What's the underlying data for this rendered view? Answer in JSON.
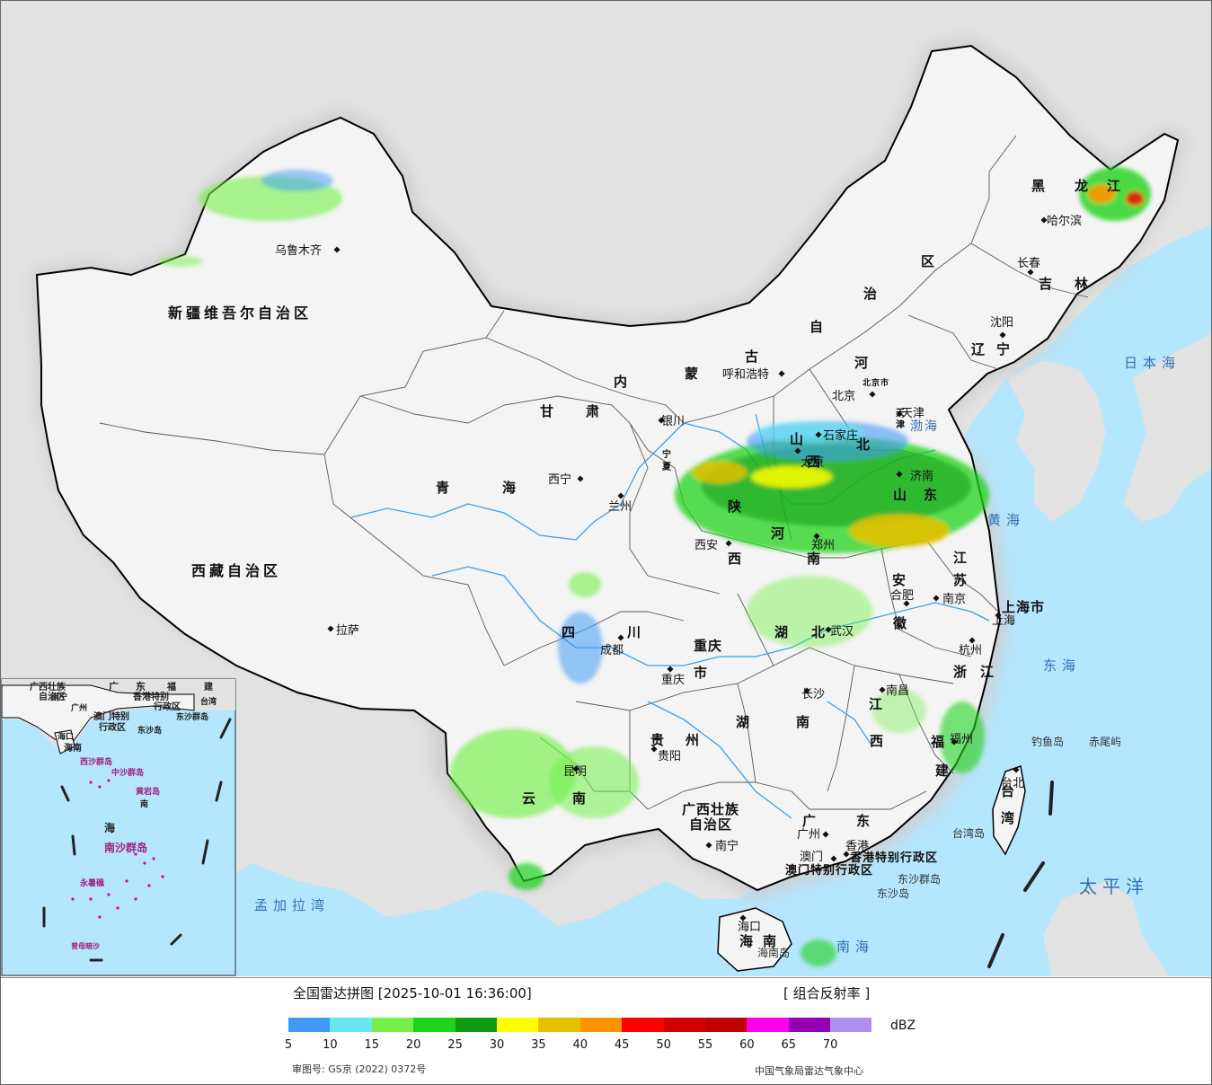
{
  "title": "全国雷达拼图 [2025-10-01 16:36:00]",
  "product": "[ 组合反射率 ]",
  "unit": "dBZ",
  "approval": "审图号: GS京 (2022) 0372号",
  "agency": "中国气象局雷达气象中心",
  "legend": {
    "ticks": [
      "5",
      "10",
      "15",
      "20",
      "25",
      "30",
      "35",
      "40",
      "45",
      "50",
      "55",
      "60",
      "65",
      "70"
    ],
    "colors": [
      "#3f9af6",
      "#66e6ee",
      "#73f04a",
      "#1fd31a",
      "#0f9a12",
      "#ffff00",
      "#e6c000",
      "#ff9200",
      "#ff0000",
      "#d40000",
      "#c00000",
      "#ff00f0",
      "#9600b4",
      "#ae90f0"
    ]
  },
  "colors": {
    "sea": "#b4e6fd",
    "land": "#f3f3f3",
    "foreign": "#e2e2e2",
    "border": "#000000",
    "province": "#555555",
    "river": "#39a0e8"
  },
  "regions": [
    {
      "name": "新疆维吾尔自治区",
      "icon": "region-label"
    },
    {
      "name": "西藏自治区",
      "icon": "region-label"
    },
    {
      "name": "青",
      "icon": "region-label"
    },
    {
      "name": "海",
      "icon": "region-label"
    },
    {
      "name": "甘",
      "icon": "region-label"
    },
    {
      "name": "肃",
      "icon": "region-label"
    },
    {
      "name": "内",
      "icon": "region-label"
    },
    {
      "name": "蒙",
      "icon": "region-label"
    },
    {
      "name": "古",
      "icon": "region-label"
    },
    {
      "name": "自",
      "icon": "region-label"
    },
    {
      "name": "治",
      "icon": "region-label"
    },
    {
      "name": "区",
      "icon": "region-label"
    },
    {
      "name": "黑",
      "icon": "region-label"
    },
    {
      "name": "龙",
      "icon": "region-label"
    },
    {
      "name": "江",
      "icon": "region-label"
    },
    {
      "name": "吉",
      "icon": "region-label"
    },
    {
      "name": "林",
      "icon": "region-label"
    },
    {
      "name": "辽",
      "icon": "region-label"
    },
    {
      "name": "宁",
      "icon": "region-label"
    },
    {
      "name": "河",
      "icon": "region-label"
    },
    {
      "name": "北",
      "icon": "region-label"
    },
    {
      "name": "山",
      "icon": "region-label"
    },
    {
      "name": "西",
      "icon": "region-label"
    },
    {
      "name": "山",
      "icon": "region-label"
    },
    {
      "name": "东",
      "icon": "region-label"
    },
    {
      "name": "陕",
      "icon": "region-label"
    },
    {
      "name": "西",
      "icon": "region-label"
    },
    {
      "name": "河",
      "icon": "region-label"
    },
    {
      "name": "南",
      "icon": "region-label"
    },
    {
      "name": "江",
      "icon": "region-label"
    },
    {
      "name": "苏",
      "icon": "region-label"
    },
    {
      "name": "安",
      "icon": "region-label"
    },
    {
      "name": "徽",
      "icon": "region-label"
    },
    {
      "name": "上海市",
      "icon": "region-label"
    },
    {
      "name": "浙",
      "icon": "region-label"
    },
    {
      "name": "江",
      "icon": "region-label"
    },
    {
      "name": "四",
      "icon": "region-label"
    },
    {
      "name": "川",
      "icon": "region-label"
    },
    {
      "name": "重庆",
      "icon": "region-label"
    },
    {
      "name": "市",
      "icon": "region-label"
    },
    {
      "name": "湖",
      "icon": "region-label"
    },
    {
      "name": "北",
      "icon": "region-label"
    },
    {
      "name": "湖",
      "icon": "region-label"
    },
    {
      "name": "南",
      "icon": "region-label"
    },
    {
      "name": "江",
      "icon": "region-label"
    },
    {
      "name": "西",
      "icon": "region-label"
    },
    {
      "name": "贵",
      "icon": "region-label"
    },
    {
      "name": "州",
      "icon": "region-label"
    },
    {
      "name": "云",
      "icon": "region-label"
    },
    {
      "name": "南",
      "icon": "region-label"
    },
    {
      "name": "广西壮族",
      "icon": "region-label"
    },
    {
      "name": "自治区",
      "icon": "region-label"
    },
    {
      "name": "广",
      "icon": "region-label"
    },
    {
      "name": "东",
      "icon": "region-label"
    },
    {
      "name": "福",
      "icon": "region-label"
    },
    {
      "name": "建",
      "icon": "region-label"
    },
    {
      "name": "台",
      "icon": "region-label"
    },
    {
      "name": "湾",
      "icon": "region-label"
    },
    {
      "name": "海",
      "icon": "region-label"
    },
    {
      "name": "南",
      "icon": "region-label"
    },
    {
      "name": "宁",
      "icon": "region-label"
    },
    {
      "name": "夏",
      "icon": "region-label"
    },
    {
      "name": "天",
      "icon": "region-label"
    },
    {
      "name": "津",
      "icon": "region-label"
    },
    {
      "name": "北京市",
      "icon": "region-label"
    },
    {
      "name": "香港特别行政区",
      "icon": "region-label"
    },
    {
      "name": "澳门特别行政区",
      "icon": "region-label"
    }
  ],
  "cities": [
    {
      "name": "乌鲁木齐"
    },
    {
      "name": "拉萨"
    },
    {
      "name": "西宁"
    },
    {
      "name": "兰州"
    },
    {
      "name": "银川"
    },
    {
      "name": "呼和浩特"
    },
    {
      "name": "北京"
    },
    {
      "name": "天津"
    },
    {
      "name": "石家庄"
    },
    {
      "name": "太原"
    },
    {
      "name": "济南"
    },
    {
      "name": "郑州"
    },
    {
      "name": "西安"
    },
    {
      "name": "成都"
    },
    {
      "name": "重庆"
    },
    {
      "name": "武汉"
    },
    {
      "name": "合肥"
    },
    {
      "name": "南京"
    },
    {
      "name": "上海"
    },
    {
      "name": "杭州"
    },
    {
      "name": "长沙"
    },
    {
      "name": "南昌"
    },
    {
      "name": "福州"
    },
    {
      "name": "台北"
    },
    {
      "name": "贵阳"
    },
    {
      "name": "昆明"
    },
    {
      "name": "南宁"
    },
    {
      "name": "广州"
    },
    {
      "name": "澳门"
    },
    {
      "name": "香港"
    },
    {
      "name": "海口"
    },
    {
      "name": "沈阳"
    },
    {
      "name": "长春"
    },
    {
      "name": "哈尔滨"
    }
  ],
  "seas": [
    {
      "name": "日本海"
    },
    {
      "name": "渤海"
    },
    {
      "name": "黄海"
    },
    {
      "name": "东海"
    },
    {
      "name": "太平洋"
    },
    {
      "name": "南海"
    },
    {
      "name": "孟加拉湾"
    }
  ],
  "islands": [
    {
      "name": "钓鱼岛"
    },
    {
      "name": "赤尾屿"
    },
    {
      "name": "台湾岛"
    },
    {
      "name": "东沙群岛"
    },
    {
      "name": "东沙岛"
    },
    {
      "name": "海南岛"
    }
  ],
  "inset": {
    "labels": [
      "广西壮族",
      "自治区",
      "广",
      "东",
      "福",
      "建",
      "台湾",
      "南宁",
      "广州",
      "香港特别",
      "行政区",
      "澳门特别",
      "行政区",
      "东沙群岛",
      "东沙岛",
      "海口",
      "海南",
      "西沙群岛",
      "中沙群岛",
      "黄岩岛",
      "南",
      "海",
      "南沙群岛",
      "永暑礁",
      "曾母暗沙"
    ]
  }
}
